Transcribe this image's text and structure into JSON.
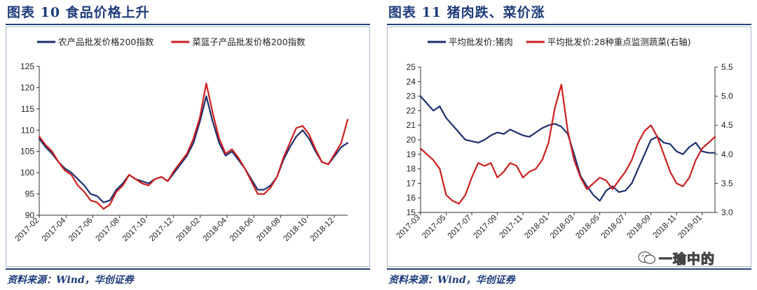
{
  "left": {
    "title": "图表 10   食品价格上升",
    "source": "资料来源：Wind，华创证券",
    "chart_data": {
      "type": "line",
      "title": "",
      "xlabel": "",
      "ylabel": "",
      "ylim": [
        90,
        125
      ],
      "yticks": [
        90,
        95,
        100,
        105,
        110,
        115,
        120,
        125
      ],
      "xrange": [
        0,
        24
      ],
      "xtick_labels": [
        "2017-02",
        "2017-04",
        "2017-06",
        "2017-08",
        "2017-10",
        "2017-12",
        "2018-02",
        "2018-04",
        "2018-06",
        "2018-08",
        "2018-10",
        "2018-12"
      ],
      "legend": "top-left",
      "grid": false,
      "series": [
        {
          "name": "农产品批发价格200指数",
          "color": "#1c2f6e",
          "x": [
            0,
            0.5,
            1,
            1.5,
            2,
            2.5,
            3,
            3.5,
            4,
            4.5,
            5,
            5.5,
            6,
            6.5,
            7,
            7.5,
            8,
            8.5,
            9,
            9.5,
            10,
            10.5,
            11,
            11.5,
            12,
            12.5,
            13,
            13.5,
            14,
            14.5,
            15,
            15.5,
            16,
            16.5,
            17,
            17.5,
            18,
            18.5,
            19,
            19.5,
            20,
            20.5,
            21,
            21.5,
            22,
            22.5,
            23,
            23.5,
            24
          ],
          "values": [
            108,
            106,
            104.5,
            102.5,
            101,
            100,
            98.5,
            97,
            95,
            94.5,
            93,
            93.5,
            96,
            97.5,
            99.5,
            98.5,
            98,
            97.5,
            98.5,
            99,
            98,
            100,
            102,
            104,
            107,
            112,
            118,
            112,
            107,
            104,
            105,
            103,
            101,
            98.5,
            96,
            96,
            97,
            99,
            103,
            106,
            108.5,
            110,
            108,
            105,
            102.5,
            102,
            104,
            106,
            107
          ]
        },
        {
          "name": "菜篮子产品批发价格200指数",
          "color": "#cc1f1f",
          "x": [
            0,
            0.5,
            1,
            1.5,
            2,
            2.5,
            3,
            3.5,
            4,
            4.5,
            5,
            5.5,
            6,
            6.5,
            7,
            7.5,
            8,
            8.5,
            9,
            9.5,
            10,
            10.5,
            11,
            11.5,
            12,
            12.5,
            13,
            13.5,
            14,
            14.5,
            15,
            15.5,
            16,
            16.5,
            17,
            17.5,
            18,
            18.5,
            19,
            19.5,
            20,
            20.5,
            21,
            21.5,
            22,
            22.5,
            23,
            23.5,
            24
          ],
          "values": [
            108.5,
            106.5,
            105,
            102.5,
            100.5,
            99.5,
            97,
            95.5,
            93.5,
            93,
            91.5,
            92.5,
            95.5,
            97,
            99.5,
            98.5,
            97.5,
            97,
            98.5,
            99,
            98,
            100.5,
            102.5,
            104.5,
            108,
            113,
            121,
            114,
            108,
            104.5,
            105.5,
            103.5,
            101,
            98,
            95,
            95,
            96.5,
            99,
            103.5,
            107,
            110.5,
            111,
            109,
            105.5,
            102.5,
            102,
            104.5,
            107,
            112.5
          ]
        }
      ]
    }
  },
  "right": {
    "title": "图表 11   猪肉跌、菜价涨",
    "source": "资料来源：Wind，华创证券",
    "chart_data": {
      "type": "line",
      "title": "",
      "xlabel": "",
      "ylabel": "",
      "ylim": [
        15,
        25
      ],
      "yticks": [
        15,
        16,
        17,
        18,
        19,
        20,
        21,
        22,
        23,
        24,
        25
      ],
      "ylim_right": [
        3.0,
        5.5
      ],
      "yticks_right": [
        "3.0",
        "3.5",
        "4.0",
        "4.5",
        "5.0",
        "5.5"
      ],
      "xrange": [
        0,
        23
      ],
      "xtick_labels": [
        "2017-03",
        "2017-05",
        "2017-07",
        "2017-09",
        "2017-11",
        "2018-01",
        "2018-03",
        "2018-05",
        "2018-07",
        "2018-09",
        "2018-11",
        "2019-01"
      ],
      "legend": "top-left",
      "grid": false,
      "series": [
        {
          "name": "平均批发价:猪肉",
          "color": "#1c2f6e",
          "axis": "left",
          "x": [
            0,
            0.5,
            1,
            1.5,
            2,
            2.5,
            3,
            3.5,
            4,
            4.5,
            5,
            5.5,
            6,
            6.5,
            7,
            7.5,
            8,
            8.5,
            9,
            9.5,
            10,
            10.5,
            11,
            11.5,
            12,
            12.5,
            13,
            13.5,
            14,
            14.5,
            15,
            15.5,
            16,
            16.5,
            17,
            17.5,
            18,
            18.5,
            19,
            19.5,
            20,
            20.5,
            21,
            21.5,
            22,
            22.5,
            23
          ],
          "values": [
            23,
            22.5,
            22,
            22.3,
            21.5,
            21,
            20.5,
            20,
            19.9,
            19.8,
            20,
            20.3,
            20.5,
            20.4,
            20.7,
            20.5,
            20.3,
            20.2,
            20.5,
            20.8,
            21,
            21.1,
            20.9,
            20.4,
            19,
            17.5,
            16.8,
            16.2,
            15.8,
            16.5,
            16.8,
            16.4,
            16.5,
            17,
            18,
            19,
            20,
            20.2,
            19.8,
            19.7,
            19.2,
            19,
            19.5,
            19.8,
            19.2,
            19.1,
            19.1
          ]
        },
        {
          "name": "平均批发价:28种重点监测蔬菜(右轴)",
          "color": "#cc1f1f",
          "axis": "right",
          "x": [
            0,
            0.5,
            1,
            1.5,
            2,
            2.5,
            3,
            3.5,
            4,
            4.5,
            5,
            5.5,
            6,
            6.5,
            7,
            7.5,
            8,
            8.5,
            9,
            9.5,
            10,
            10.5,
            11,
            11.5,
            12,
            12.5,
            13,
            13.5,
            14,
            14.5,
            15,
            15.5,
            16,
            16.5,
            17,
            17.5,
            18,
            18.5,
            19,
            19.5,
            20,
            20.5,
            21,
            21.5,
            22,
            22.5,
            23
          ],
          "values": [
            4.1,
            4.0,
            3.9,
            3.75,
            3.3,
            3.2,
            3.15,
            3.3,
            3.6,
            3.85,
            3.8,
            3.85,
            3.6,
            3.7,
            3.85,
            3.8,
            3.6,
            3.7,
            3.75,
            3.9,
            4.2,
            4.8,
            5.2,
            4.4,
            3.9,
            3.6,
            3.4,
            3.5,
            3.6,
            3.55,
            3.4,
            3.55,
            3.7,
            3.9,
            4.2,
            4.4,
            4.5,
            4.3,
            4.0,
            3.7,
            3.5,
            3.45,
            3.6,
            3.9,
            4.1,
            4.2,
            4.3
          ]
        }
      ]
    }
  },
  "watermark": {
    "text": "一瑜中的",
    "icon": "wechat-icon"
  }
}
